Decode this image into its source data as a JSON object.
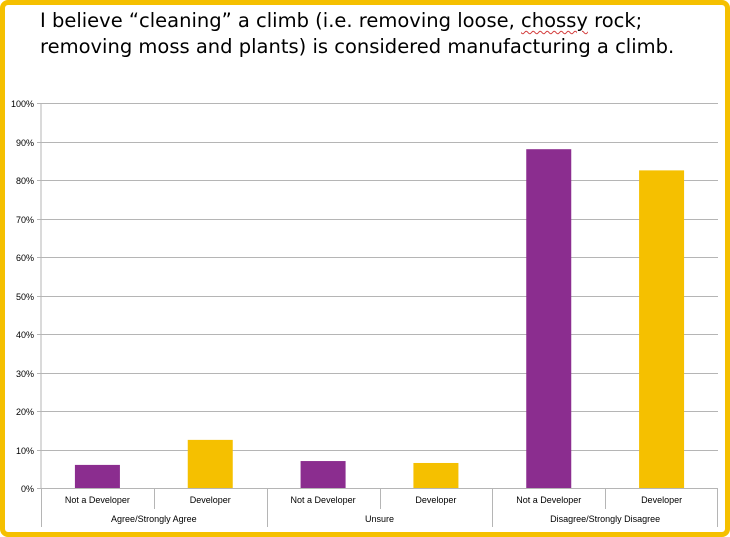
{
  "title": {
    "line1_before": "I believe “cleaning” a climb (i.e. removing loose, ",
    "line1_marked": "chossy",
    "line1_after": " rock;",
    "line2": "removing moss and plants) is considered manufacturing a climb."
  },
  "colors": {
    "frame": "#F5C000",
    "not_developer": "#8B2D8F",
    "developer": "#F5C000",
    "grid": "#b5b5b5",
    "spellcheck": "#d23a3a"
  },
  "chart_data": {
    "type": "bar",
    "y_ticks": [
      "0%",
      "10%",
      "20%",
      "30%",
      "40%",
      "50%",
      "60%",
      "70%",
      "80%",
      "90%",
      "100%"
    ],
    "ylim": [
      0,
      100
    ],
    "grid": true,
    "groups": [
      "Agree/Strongly Agree",
      "Unsure",
      "Disagree/Strongly Disagree"
    ],
    "bars": [
      {
        "group": "Agree/Strongly Agree",
        "category": "Not a Developer",
        "value": 6,
        "color": "#8B2D8F"
      },
      {
        "group": "Agree/Strongly Agree",
        "category": "Developer",
        "value": 12.5,
        "color": "#F5C000"
      },
      {
        "group": "Unsure",
        "category": "Not a Developer",
        "value": 7,
        "color": "#8B2D8F"
      },
      {
        "group": "Unsure",
        "category": "Developer",
        "value": 6.5,
        "color": "#F5C000"
      },
      {
        "group": "Disagree/Strongly Disagree",
        "category": "Not a Developer",
        "value": 88,
        "color": "#8B2D8F"
      },
      {
        "group": "Disagree/Strongly Disagree",
        "category": "Developer",
        "value": 82.5,
        "color": "#F5C000"
      }
    ]
  }
}
